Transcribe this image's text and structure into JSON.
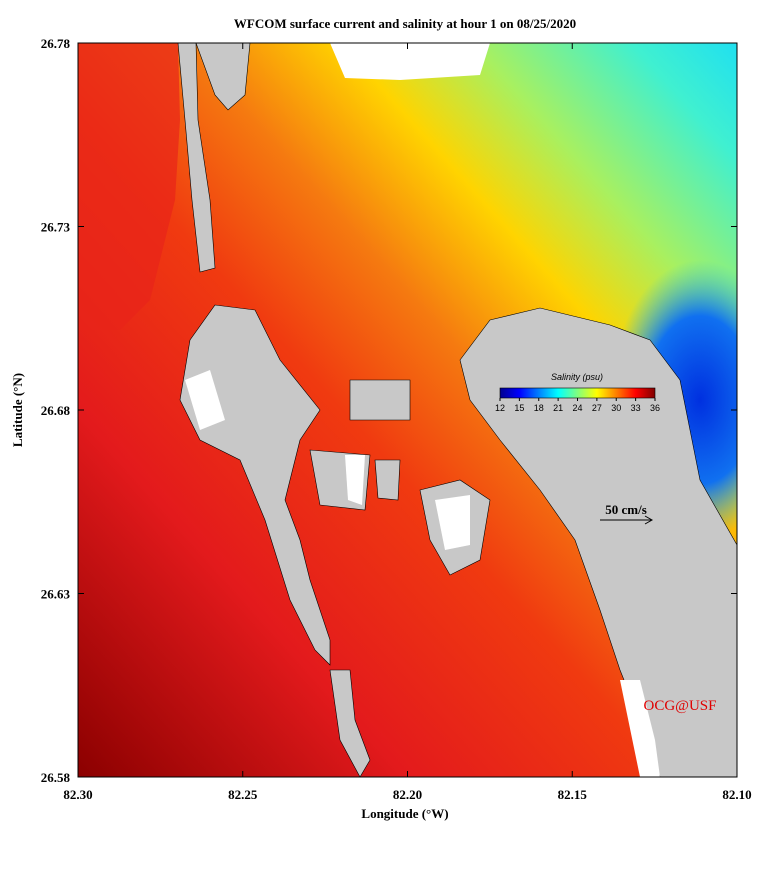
{
  "title": "WFCOM surface current and salinity at hour 1 on 08/25/2020",
  "x_axis": {
    "label": "Longitude (°W)",
    "lim": [
      82.3,
      82.1
    ],
    "ticks": [
      {
        "value": 82.3,
        "label": "82.30"
      },
      {
        "value": 82.25,
        "label": "82.25"
      },
      {
        "value": 82.2,
        "label": "82.20"
      },
      {
        "value": 82.15,
        "label": "82.15"
      },
      {
        "value": 82.1,
        "label": "82.10"
      }
    ]
  },
  "y_axis": {
    "label": "Latitude (°N)",
    "lim": [
      26.58,
      26.78
    ],
    "ticks": [
      {
        "value": 26.58,
        "label": "26.58"
      },
      {
        "value": 26.63,
        "label": "26.63"
      },
      {
        "value": 26.68,
        "label": "26.68"
      },
      {
        "value": 26.73,
        "label": "26.73"
      },
      {
        "value": 26.78,
        "label": "26.78"
      }
    ]
  },
  "colorbar": {
    "title": "Salinity (psu)",
    "lim": [
      12,
      36
    ],
    "ticks": [
      12,
      15,
      18,
      21,
      24,
      27,
      30,
      33,
      36
    ]
  },
  "scale_arrow": "50 cm/s",
  "watermark": "OCG@USF"
}
